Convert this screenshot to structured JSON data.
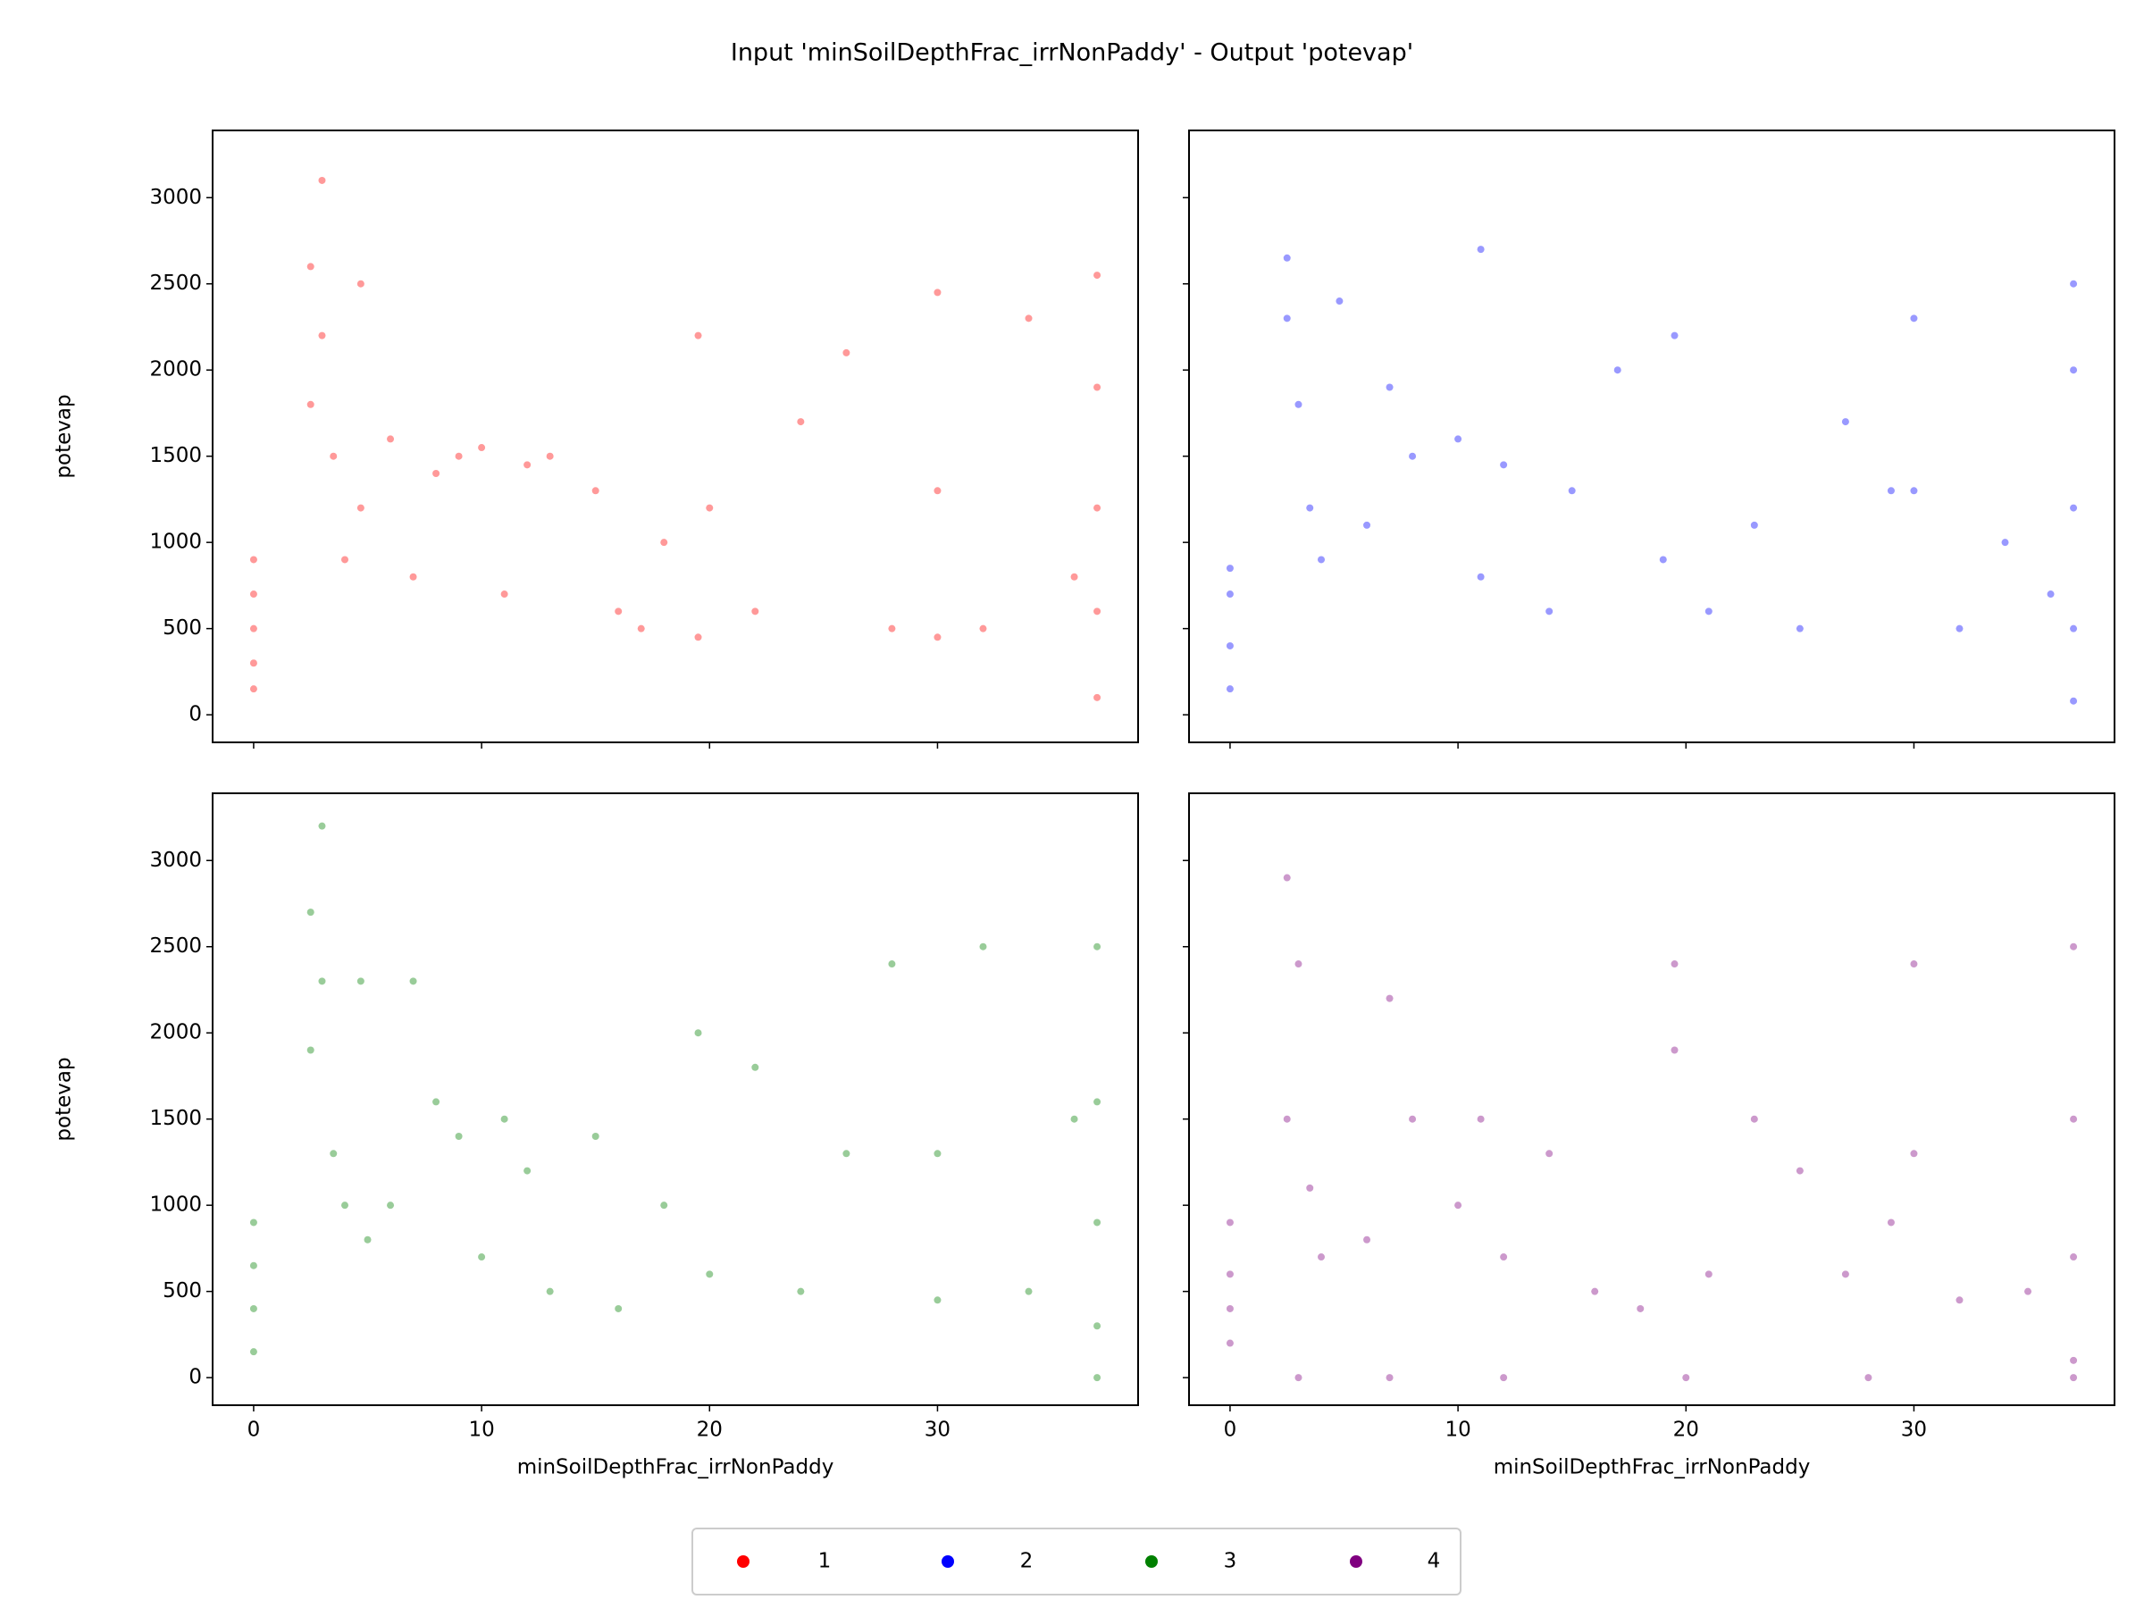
{
  "title": "Input 'minSoilDepthFrac_irrNonPaddy' - Output 'potevap'",
  "chart_data": [
    {
      "type": "scatter",
      "y_label": "potevap",
      "xlim": [
        -1.8,
        38.8
      ],
      "ylim": [
        -160,
        3390
      ],
      "xticks": [
        0,
        10,
        20,
        30
      ],
      "yticks": [
        0,
        500,
        1000,
        1500,
        2000,
        2500,
        3000
      ],
      "series": [
        {
          "name": "1",
          "color": "#ff0000",
          "x": [
            0,
            0,
            0,
            0,
            0,
            2.5,
            2.5,
            3,
            3,
            3.5,
            4,
            4.7,
            4.7,
            6,
            7,
            8,
            9,
            10,
            11,
            12,
            13,
            15,
            16,
            17,
            18,
            19.5,
            19.5,
            20,
            22,
            24,
            26,
            28,
            30,
            30,
            30,
            32,
            34,
            36,
            37,
            37,
            37,
            37,
            37
          ],
          "y": [
            150,
            300,
            500,
            700,
            900,
            1800,
            2600,
            2200,
            3100,
            1500,
            900,
            2500,
            1200,
            1600,
            800,
            1400,
            1500,
            1550,
            700,
            1450,
            1500,
            1300,
            600,
            500,
            1000,
            2200,
            450,
            1200,
            600,
            1700,
            2100,
            500,
            2450,
            1300,
            450,
            500,
            2300,
            800,
            100,
            600,
            1200,
            1900,
            2550
          ]
        }
      ]
    },
    {
      "type": "scatter",
      "xlim": [
        -1.8,
        38.8
      ],
      "ylim": [
        -160,
        3390
      ],
      "xticks": [
        0,
        10,
        20,
        30
      ],
      "yticks": [
        0,
        500,
        1000,
        1500,
        2000,
        2500,
        3000
      ],
      "series": [
        {
          "name": "2",
          "color": "#0000ff",
          "x": [
            0,
            0,
            0,
            0,
            2.5,
            2.5,
            3,
            3.5,
            4,
            4.8,
            6,
            7,
            8,
            10,
            11,
            12,
            14,
            15,
            17,
            19,
            19.5,
            21,
            23,
            25,
            27,
            29,
            30,
            30,
            32,
            34,
            36,
            37,
            37,
            37,
            37,
            37,
            11
          ],
          "y": [
            150,
            400,
            700,
            850,
            2650,
            2300,
            1800,
            1200,
            900,
            2400,
            1100,
            1900,
            1500,
            1600,
            800,
            1450,
            600,
            1300,
            2000,
            900,
            2200,
            600,
            1100,
            500,
            1700,
            1300,
            1300,
            2300,
            500,
            1000,
            700,
            80,
            500,
            1200,
            2000,
            2500,
            2700
          ]
        }
      ]
    },
    {
      "type": "scatter",
      "x_label": "minSoilDepthFrac_irrNonPaddy",
      "y_label": "potevap",
      "xlim": [
        -1.8,
        38.8
      ],
      "ylim": [
        -160,
        3390
      ],
      "xticks": [
        0,
        10,
        20,
        30
      ],
      "yticks": [
        0,
        500,
        1000,
        1500,
        2000,
        2500,
        3000
      ],
      "series": [
        {
          "name": "3",
          "color": "#008000",
          "x": [
            0,
            0,
            0,
            0,
            2.5,
            2.5,
            3,
            3.5,
            4,
            4.7,
            5,
            6,
            7,
            8,
            9,
            10,
            11,
            12,
            13,
            15,
            16,
            18,
            19.5,
            20,
            22,
            24,
            26,
            28,
            30,
            30,
            32,
            34,
            36,
            37,
            37,
            37,
            37,
            37,
            3
          ],
          "y": [
            150,
            400,
            650,
            900,
            2700,
            1900,
            2300,
            1300,
            1000,
            2300,
            800,
            1000,
            2300,
            1600,
            1400,
            700,
            1500,
            1200,
            500,
            1400,
            400,
            1000,
            2000,
            600,
            1800,
            500,
            1300,
            2400,
            1300,
            450,
            2500,
            500,
            1500,
            0,
            300,
            900,
            1600,
            2500,
            3200
          ]
        }
      ]
    },
    {
      "type": "scatter",
      "x_label": "minSoilDepthFrac_irrNonPaddy",
      "xlim": [
        -1.8,
        38.8
      ],
      "ylim": [
        -160,
        3390
      ],
      "xticks": [
        0,
        10,
        20,
        30
      ],
      "yticks": [
        0,
        500,
        1000,
        1500,
        2000,
        2500,
        3000
      ],
      "series": [
        {
          "name": "4",
          "color": "#800080",
          "x": [
            0,
            0,
            0,
            0,
            2.5,
            2.5,
            3,
            3.5,
            4,
            6,
            7,
            8,
            10,
            11,
            12,
            14,
            16,
            18,
            19.5,
            19.5,
            21,
            23,
            25,
            27,
            29,
            30,
            30,
            32,
            35,
            37,
            37,
            37,
            37,
            37,
            3,
            7,
            12,
            20,
            28
          ],
          "y": [
            200,
            400,
            600,
            900,
            2900,
            1500,
            2400,
            1100,
            700,
            800,
            2200,
            1500,
            1000,
            1500,
            700,
            1300,
            500,
            400,
            1900,
            2400,
            600,
            1500,
            1200,
            600,
            900,
            1300,
            2400,
            450,
            500,
            0,
            100,
            700,
            1500,
            2500,
            0,
            0,
            0,
            0,
            0
          ]
        }
      ]
    }
  ]
}
